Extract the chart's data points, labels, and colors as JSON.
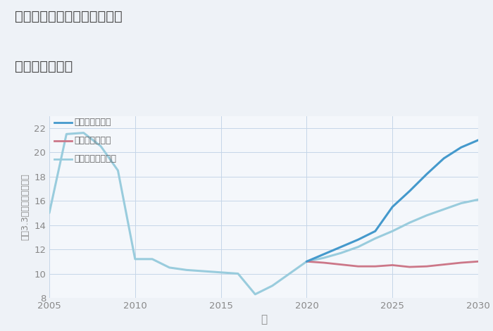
{
  "title_line1": "三重県北牟婁郡紀北町船津の",
  "title_line2": "土地の価格推移",
  "xlabel": "年",
  "ylabel": "坪（3.3m）単価（万円）",
  "background_color": "#eef2f7",
  "plot_bg_color": "#f4f7fb",
  "grid_color": "#c5d5e8",
  "ylim": [
    8,
    23
  ],
  "xlim": [
    2005,
    2030
  ],
  "yticks": [
    8,
    10,
    12,
    14,
    16,
    18,
    20,
    22
  ],
  "xticks": [
    2005,
    2010,
    2015,
    2020,
    2025,
    2030
  ],
  "good_scenario": {
    "label": "グッドシナリオ",
    "color": "#4499cc",
    "linewidth": 2.2,
    "x": [
      2020,
      2021,
      2022,
      2023,
      2024,
      2025,
      2026,
      2027,
      2028,
      2029,
      2030
    ],
    "y": [
      11.0,
      11.6,
      12.2,
      12.8,
      13.5,
      15.5,
      16.8,
      18.2,
      19.5,
      20.4,
      21.0
    ]
  },
  "bad_scenario": {
    "label": "バッドシナリオ",
    "color": "#cc7788",
    "linewidth": 2.0,
    "x": [
      2020,
      2021,
      2022,
      2023,
      2024,
      2025,
      2026,
      2027,
      2028,
      2029,
      2030
    ],
    "y": [
      11.0,
      10.9,
      10.75,
      10.6,
      10.6,
      10.7,
      10.55,
      10.6,
      10.75,
      10.9,
      11.0
    ]
  },
  "normal_scenario": {
    "label": "ノーマルシナリオ",
    "color": "#99ccdd",
    "linewidth": 2.2,
    "x_hist": [
      2005,
      2006,
      2007,
      2008,
      2009,
      2010,
      2011,
      2012,
      2013,
      2014,
      2015,
      2016,
      2017,
      2018,
      2019,
      2020
    ],
    "y_hist": [
      15.0,
      21.5,
      21.6,
      20.5,
      18.5,
      11.2,
      11.2,
      10.5,
      10.3,
      10.2,
      10.1,
      10.0,
      8.3,
      9.0,
      10.0,
      11.0
    ],
    "x_fut": [
      2020,
      2021,
      2022,
      2023,
      2024,
      2025,
      2026,
      2027,
      2028,
      2029,
      2030
    ],
    "y_fut": [
      11.0,
      11.3,
      11.7,
      12.2,
      12.9,
      13.5,
      14.2,
      14.8,
      15.3,
      15.8,
      16.1
    ]
  }
}
